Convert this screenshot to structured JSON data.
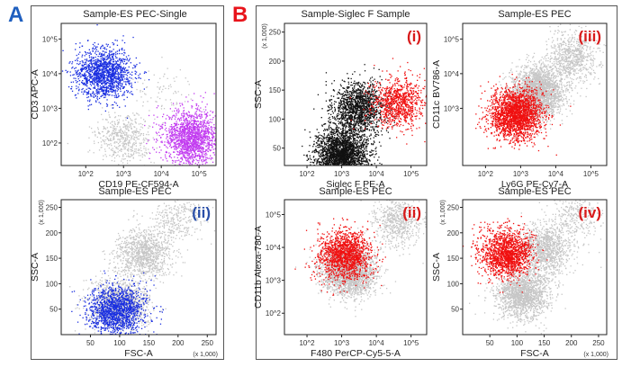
{
  "labels": {
    "A": "A",
    "B": "B"
  },
  "colors": {
    "A": "#1f5fbf",
    "B": "#e8141b",
    "gray": "#c6c6c6",
    "black": "#111111",
    "blue": "#1a2fe0",
    "purple": "#c23cf0",
    "red": "#f01010",
    "redTag": "#d81b1b",
    "blueTag": "#2a4fa8"
  },
  "chart_data": [
    {
      "id": "A1",
      "type": "scatter",
      "title": "Sample-ES PEC-Single",
      "xlabel": "CD19 PE-CF594-A",
      "ylabel": "CD3 APC-A",
      "xscale": "log",
      "yscale": "log",
      "xticks": [
        "10^2",
        "10^3",
        "10^4",
        "10^5"
      ],
      "yticks": [
        "10^2",
        "10^3",
        "10^4",
        "10^5"
      ],
      "series": [
        {
          "color": "gray",
          "clusters": [
            {
              "x": 1000,
              "y": 150,
              "n": 500
            },
            {
              "x": 10000,
              "y": 3000,
              "n": 80
            }
          ]
        },
        {
          "color": "blue",
          "clusters": [
            {
              "x": 300,
              "y": 10000,
              "n": 1400
            }
          ]
        },
        {
          "color": "purple",
          "clusters": [
            {
              "x": 60000,
              "y": 150,
              "n": 1600
            }
          ]
        }
      ]
    },
    {
      "id": "A2",
      "type": "scatter",
      "tag": "(ii)",
      "tagColor": "blueTag",
      "title": "Sample-ES PEC",
      "xlabel": "FSC-A",
      "ylabel": "SSC-A",
      "xunit": "(x 1,000)",
      "yunit": "(x 1,000)",
      "xscale": "linear",
      "yscale": "linear",
      "xrange": [
        0,
        265
      ],
      "yrange": [
        0,
        265
      ],
      "xticks": [
        "50",
        "100",
        "150",
        "200",
        "250"
      ],
      "yticks": [
        "50",
        "100",
        "150",
        "200",
        "250"
      ],
      "series": [
        {
          "color": "gray",
          "clusters": [
            {
              "x": 100,
              "y": 60,
              "n": 1400
            },
            {
              "x": 140,
              "y": 160,
              "n": 1000
            },
            {
              "x": 200,
              "y": 230,
              "n": 300
            }
          ]
        },
        {
          "color": "blue",
          "clusters": [
            {
              "x": 95,
              "y": 48,
              "n": 1400
            }
          ]
        }
      ]
    },
    {
      "id": "B1",
      "type": "scatter",
      "tag": "(i)",
      "tagColor": "redTag",
      "title": "Sample-Siglec F Sample",
      "xlabel": "Siglec F PE-A",
      "ylabel": "SSC-A",
      "yunit": "(x 1,000)",
      "xscale": "log",
      "yscale": "linear",
      "yrange": [
        20,
        265
      ],
      "xticks": [
        "10^2",
        "10^3",
        "10^4",
        "10^5"
      ],
      "yticks": [
        "50",
        "100",
        "150",
        "200",
        "250"
      ],
      "series": [
        {
          "color": "black",
          "clusters": [
            {
              "x": 1000,
              "y": 40,
              "n": 2500
            },
            {
              "x": 3000,
              "y": 120,
              "n": 1400
            }
          ]
        },
        {
          "color": "red",
          "clusters": [
            {
              "x": 40000,
              "y": 130,
              "n": 900
            }
          ]
        }
      ]
    },
    {
      "id": "B2",
      "type": "scatter",
      "tag": "(iii)",
      "tagColor": "redTag",
      "title": "Sample-ES PEC",
      "xlabel": "Ly6G PE-Cy7-A",
      "ylabel": "CD11c BV786-A",
      "xscale": "log",
      "yscale": "log",
      "xticks": [
        "10^2",
        "10^3",
        "10^4",
        "10^5"
      ],
      "yticks": [
        "10^3",
        "10^4",
        "10^5"
      ],
      "series": [
        {
          "color": "gray",
          "clusters": [
            {
              "x": 3000,
              "y": 3000,
              "n": 2400
            },
            {
              "x": 30000,
              "y": 30000,
              "n": 700
            }
          ]
        },
        {
          "color": "red",
          "clusters": [
            {
              "x": 700,
              "y": 700,
              "n": 2200
            }
          ]
        }
      ]
    },
    {
      "id": "B3",
      "type": "scatter",
      "tag": "(ii)",
      "tagColor": "redTag",
      "title": "Sample-ES PEC",
      "xlabel": "F480 PerCP-Cy5-5-A",
      "ylabel": "CD11b Alexa-780-A",
      "xscale": "log",
      "yscale": "log",
      "xticks": [
        "10^2",
        "10^3",
        "10^4",
        "10^5"
      ],
      "yticks": [
        "10^2",
        "10^3",
        "10^4",
        "10^5"
      ],
      "series": [
        {
          "color": "gray",
          "clusters": [
            {
              "x": 1500,
              "y": 2000,
              "n": 2400
            },
            {
              "x": 40000,
              "y": 60000,
              "n": 600
            }
          ]
        },
        {
          "color": "red",
          "clusters": [
            {
              "x": 1200,
              "y": 6000,
              "n": 1500
            }
          ]
        }
      ]
    },
    {
      "id": "B4",
      "type": "scatter",
      "tag": "(iv)",
      "tagColor": "redTag",
      "title": "Sample-ES PEC",
      "xlabel": "FSC-A",
      "ylabel": "SSC-A",
      "xunit": "(x 1,000)",
      "yunit": "(x 1,000)",
      "xscale": "linear",
      "yscale": "linear",
      "xrange": [
        0,
        265
      ],
      "yrange": [
        0,
        265
      ],
      "xticks": [
        "50",
        "100",
        "150",
        "200",
        "250"
      ],
      "yticks": [
        "50",
        "100",
        "150",
        "200",
        "250"
      ],
      "series": [
        {
          "color": "gray",
          "clusters": [
            {
              "x": 110,
              "y": 80,
              "n": 1600
            },
            {
              "x": 150,
              "y": 170,
              "n": 1100
            },
            {
              "x": 210,
              "y": 235,
              "n": 300
            }
          ]
        },
        {
          "color": "red",
          "clusters": [
            {
              "x": 80,
              "y": 160,
              "n": 1600
            }
          ]
        }
      ]
    }
  ]
}
